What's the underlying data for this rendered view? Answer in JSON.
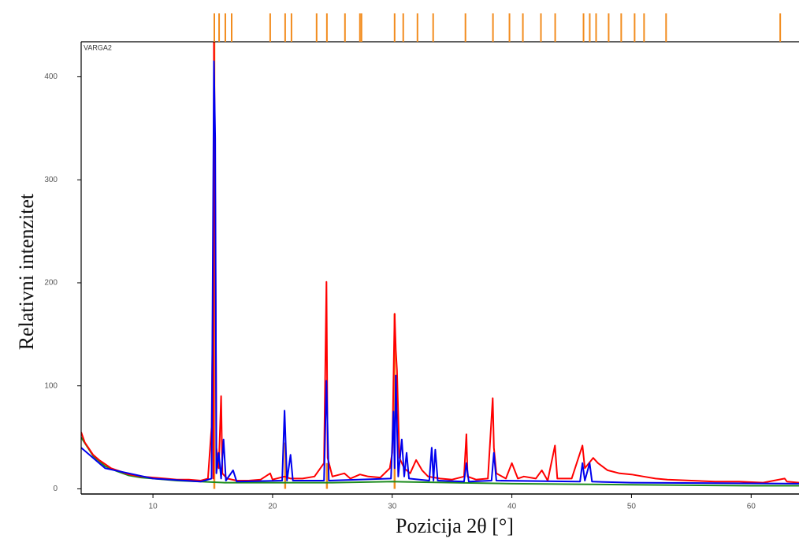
{
  "chart_data": {
    "type": "line",
    "xlabel": "Pozicija 2θ [°]",
    "ylabel": "Relativni intenzitet",
    "annotation": "VARGA2",
    "xlim": [
      4,
      64
    ],
    "ylim": [
      -5,
      434
    ],
    "xticks": [
      10,
      20,
      30,
      40,
      50,
      60
    ],
    "yticks": [
      0,
      100,
      200,
      300,
      400
    ],
    "reference_color": "#f28c1e",
    "reference_positions": [
      15.13,
      15.53,
      16.05,
      16.58,
      19.8,
      21.05,
      21.58,
      23.68,
      24.54,
      26.05,
      27.3,
      27.43,
      30.2,
      30.92,
      32.11,
      33.42,
      36.12,
      38.42,
      39.8,
      40.92,
      42.43,
      43.62,
      45.99,
      46.51,
      47.04,
      48.09,
      49.14,
      50.26,
      51.05,
      52.89,
      62.43
    ],
    "series": [
      {
        "color": "#1e8c1e",
        "style": "line",
        "x": [
          4,
          5,
          6,
          7,
          8,
          9,
          10,
          12,
          14,
          16,
          20,
          25,
          30,
          35,
          40,
          50,
          60,
          64
        ],
        "values": [
          50,
          32,
          22,
          17,
          13,
          11,
          10,
          8,
          7,
          6,
          6,
          6,
          7,
          6,
          5,
          4,
          3,
          3
        ]
      },
      {
        "color": "#ff0000",
        "style": "line",
        "x": [
          4,
          4.3,
          4.6,
          5,
          5.5,
          6,
          6.5,
          7,
          7.5,
          8,
          8.5,
          9,
          10,
          11,
          12,
          13,
          14,
          14.6,
          14.9,
          15.0,
          15.05,
          15.1,
          15.2,
          15.3,
          15.5,
          15.7,
          15.8,
          16.2,
          17,
          18,
          19,
          19.8,
          20,
          21,
          21.5,
          22.5,
          23.5,
          24.3,
          24.5,
          24.6,
          25,
          26,
          26.5,
          27.3,
          28,
          29,
          29.8,
          30.0,
          30.2,
          30.3,
          30.4,
          30.6,
          31,
          31.5,
          32,
          32.5,
          33,
          34,
          35,
          36,
          36.2,
          36.3,
          37,
          38,
          38.4,
          38.5,
          38.7,
          39.5,
          40,
          40.5,
          41,
          42,
          42.5,
          43,
          43.6,
          43.8,
          45,
          45.9,
          46.1,
          46.8,
          47.2,
          48,
          49,
          50,
          51,
          52,
          53,
          55,
          57,
          59,
          61,
          62.8,
          63,
          64
        ],
        "values": [
          55,
          45,
          40,
          33,
          28,
          24,
          20,
          18,
          16,
          14,
          13,
          12,
          11,
          10,
          9,
          9,
          8,
          10,
          60,
          165,
          10,
          435,
          280,
          40,
          20,
          90,
          15,
          10,
          8,
          8,
          9,
          15,
          9,
          12,
          10,
          10,
          12,
          25,
          201,
          30,
          12,
          15,
          10,
          14,
          12,
          11,
          20,
          35,
          170,
          135,
          115,
          30,
          20,
          15,
          28,
          18,
          12,
          10,
          9,
          12,
          53,
          12,
          9,
          10,
          88,
          40,
          15,
          10,
          25,
          10,
          12,
          10,
          18,
          8,
          42,
          10,
          10,
          42,
          20,
          30,
          25,
          18,
          15,
          14,
          12,
          10,
          9,
          8,
          7,
          7,
          6,
          10,
          7,
          6
        ]
      },
      {
        "color": "#0000ee",
        "style": "line",
        "x": [
          4,
          6,
          10,
          14,
          14.9,
          15.1,
          15.2,
          15.3,
          15.5,
          15.7,
          15.9,
          16.1,
          16.7,
          17,
          20.8,
          21.0,
          21.2,
          21.5,
          21.7,
          24.3,
          24.5,
          24.7,
          29.9,
          30.1,
          30.2,
          30.3,
          30.5,
          30.8,
          31.0,
          31.2,
          31.4,
          33.1,
          33.3,
          33.45,
          33.6,
          33.8,
          36.0,
          36.2,
          36.4,
          38.3,
          38.5,
          38.7,
          45.7,
          45.9,
          46.1,
          46.5,
          46.7,
          50,
          64
        ],
        "values": [
          40,
          20,
          10,
          7,
          10,
          415,
          340,
          15,
          35,
          10,
          48,
          8,
          18,
          7,
          8,
          76,
          8,
          33,
          8,
          8,
          105,
          8,
          10,
          75,
          20,
          110,
          12,
          48,
          12,
          35,
          10,
          8,
          40,
          8,
          38,
          8,
          7,
          25,
          7,
          8,
          35,
          8,
          7,
          25,
          8,
          25,
          7,
          6,
          5
        ]
      },
      {
        "color": "#f28c1e",
        "style": "stick",
        "x": [
          15.13,
          21.05,
          24.54,
          30.2
        ],
        "values": [
          434,
          45,
          25,
          170
        ]
      }
    ]
  }
}
